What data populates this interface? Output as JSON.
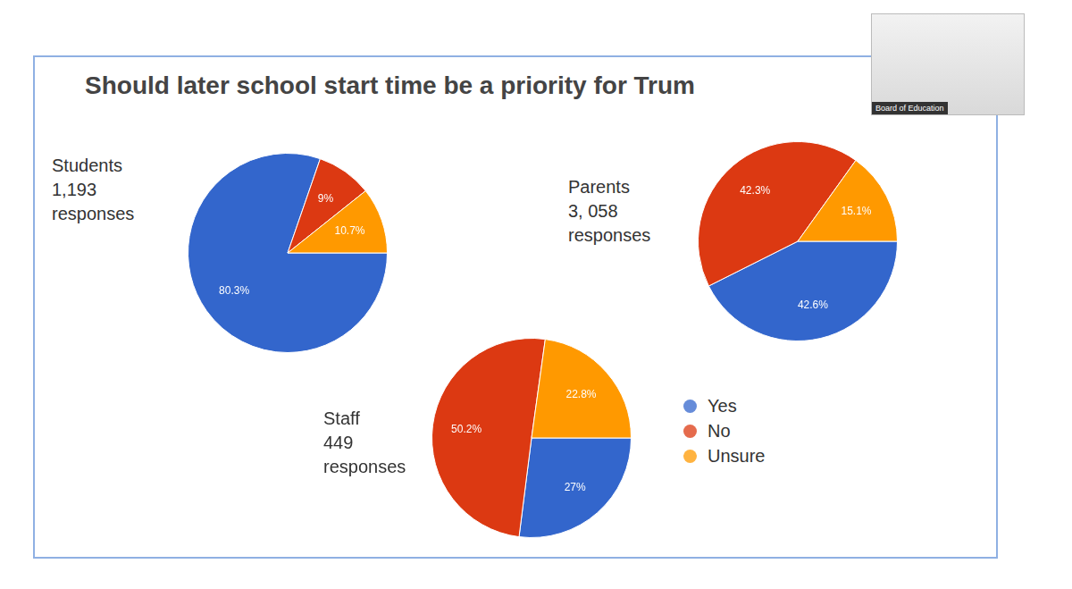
{
  "title": "Should later school start time be a priority for Trum",
  "overlay_label": "Board of Education",
  "chart_data": [
    {
      "type": "pie",
      "title": "Students",
      "subtitle": "1,193 responses",
      "categories": [
        "Yes",
        "No",
        "Unsure"
      ],
      "values": [
        80.3,
        9,
        10.7
      ],
      "value_labels": [
        "80.3%",
        "9%",
        "10.7%"
      ],
      "colors": [
        "#3366cc",
        "#dc3912",
        "#ff9900"
      ],
      "data_labels": true
    },
    {
      "type": "pie",
      "title": "Parents",
      "subtitle": "3, 058 responses",
      "categories": [
        "Yes",
        "No",
        "Unsure"
      ],
      "values": [
        42.6,
        42.3,
        15.1
      ],
      "value_labels": [
        "42.6%",
        "42.3%",
        "15.1%"
      ],
      "colors": [
        "#3366cc",
        "#dc3912",
        "#ff9900"
      ],
      "data_labels": true
    },
    {
      "type": "pie",
      "title": "Staff",
      "subtitle": "449 responses",
      "categories": [
        "Yes",
        "No",
        "Unsure"
      ],
      "values": [
        27,
        50.2,
        22.8
      ],
      "value_labels": [
        "27%",
        "50.2%",
        "22.8%"
      ],
      "colors": [
        "#3366cc",
        "#dc3912",
        "#ff9900"
      ],
      "data_labels": true,
      "legend": "right"
    }
  ]
}
